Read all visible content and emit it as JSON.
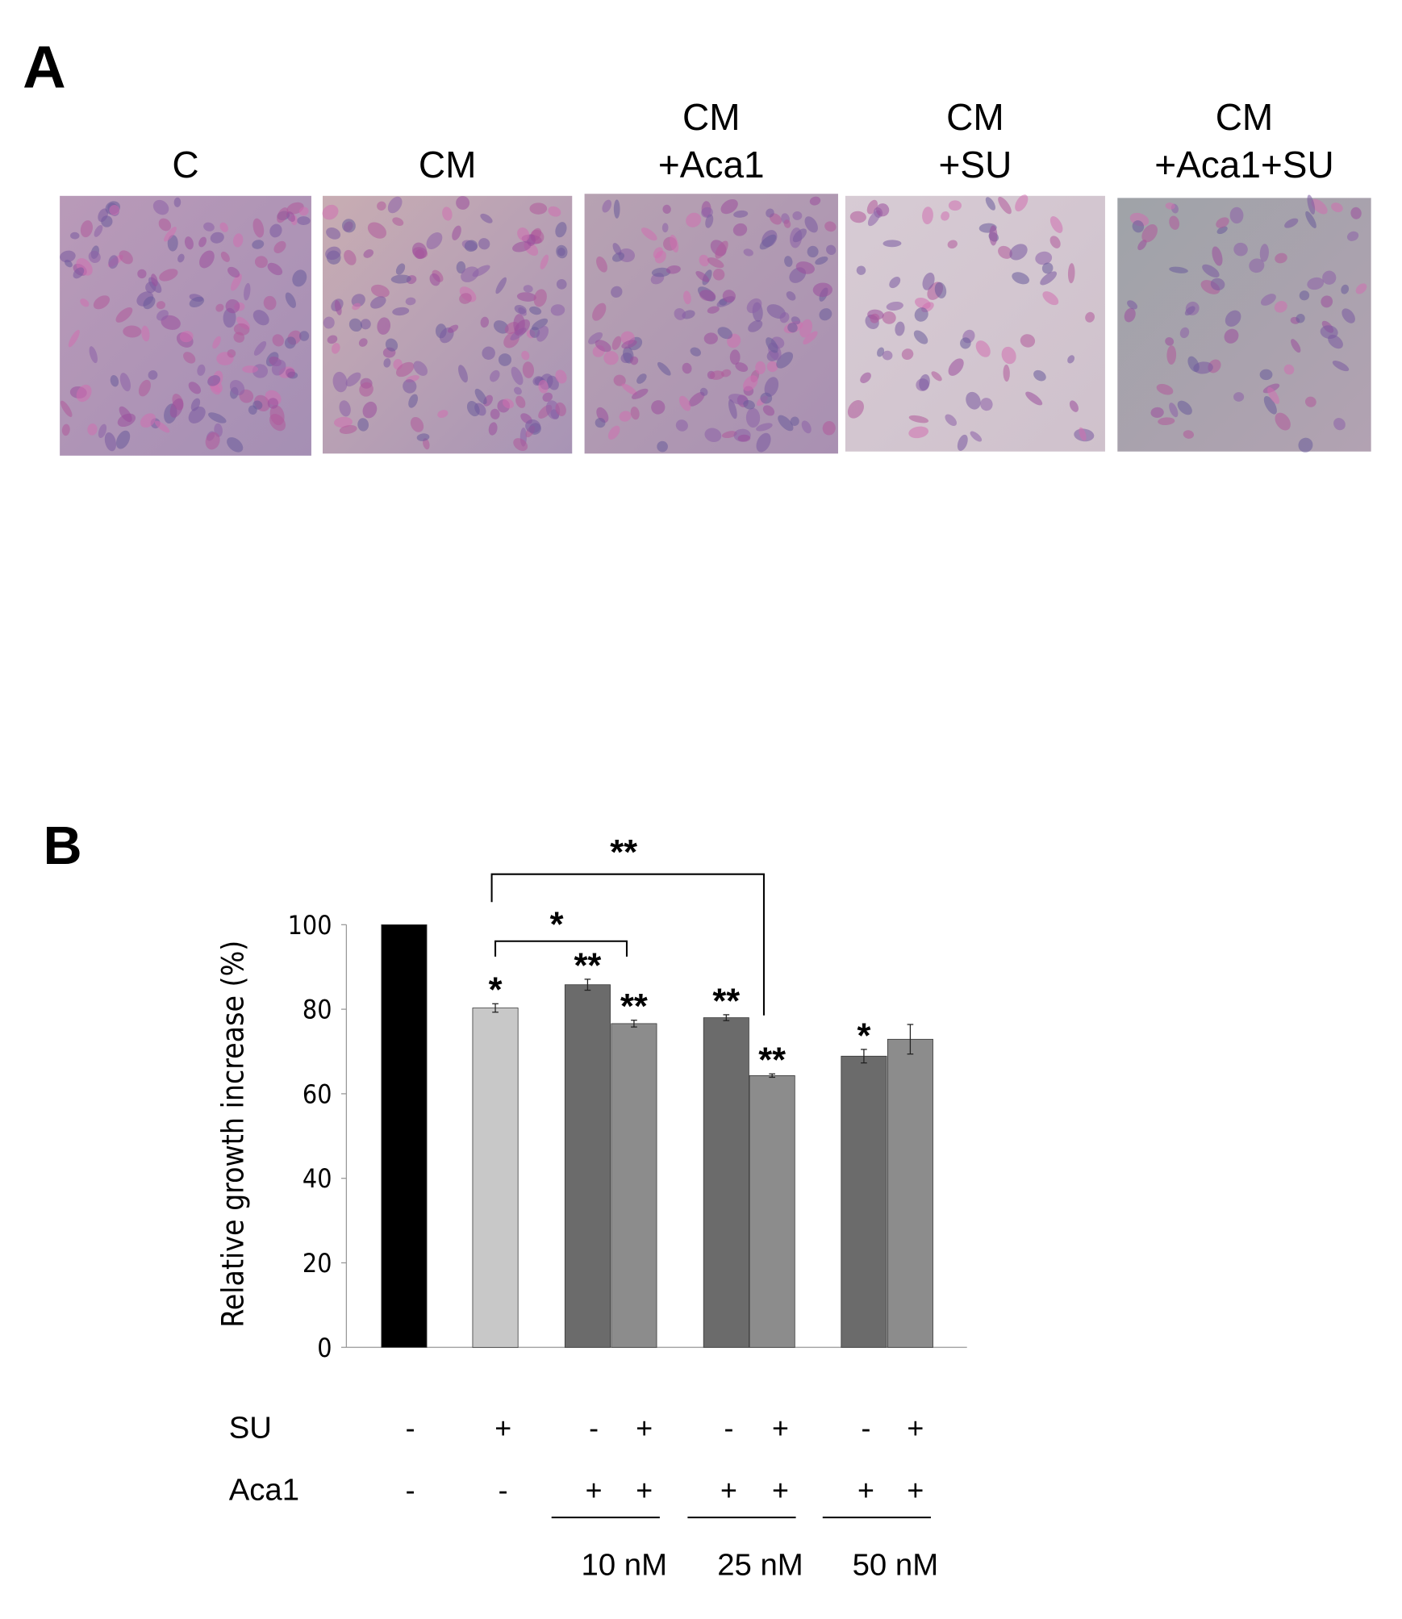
{
  "panel_a": {
    "label": "A",
    "images": [
      {
        "caption": [
          "C"
        ]
      },
      {
        "caption": [
          "CM"
        ]
      },
      {
        "caption": [
          "CM",
          "+Aca1"
        ]
      },
      {
        "caption": [
          "CM",
          "+SU"
        ]
      },
      {
        "caption": [
          "CM",
          "+Aca1+SU"
        ]
      }
    ]
  },
  "chart_data": {
    "type": "bar",
    "panel_label": "B",
    "y_label": "Relative growth increase (%)",
    "values": [
      100,
      80.3,
      85.8,
      76.6,
      78,
      64.3,
      68.9,
      72.9
    ],
    "errors": [
      0,
      1,
      1.3,
      0.8,
      0.7,
      0.4,
      1.6,
      3.5
    ],
    "colors": [
      "#000000",
      "#c8c8c8",
      "#6b6b6b",
      "#8c8c8c",
      "#6b6b6b",
      "#8c8c8c",
      "#6b6b6b",
      "#8c8c8c"
    ],
    "significance": [
      null,
      "*",
      "**",
      "**",
      "**",
      "**",
      "*",
      null
    ],
    "brackets": [
      "*",
      "**"
    ],
    "ylim": [
      0,
      100
    ],
    "yticks": [
      0,
      20,
      40,
      60,
      80,
      100
    ],
    "conditions": [
      {
        "name": "SU",
        "values": [
          "-",
          "+",
          "-",
          "+",
          "-",
          "+",
          "-",
          "+"
        ]
      },
      {
        "name": "Aca1",
        "values": [
          "-",
          "-",
          "+",
          "+",
          "+",
          "+",
          "+",
          "+"
        ]
      }
    ],
    "groups": [
      "10 nM",
      "25 nM",
      "50 nM"
    ]
  }
}
